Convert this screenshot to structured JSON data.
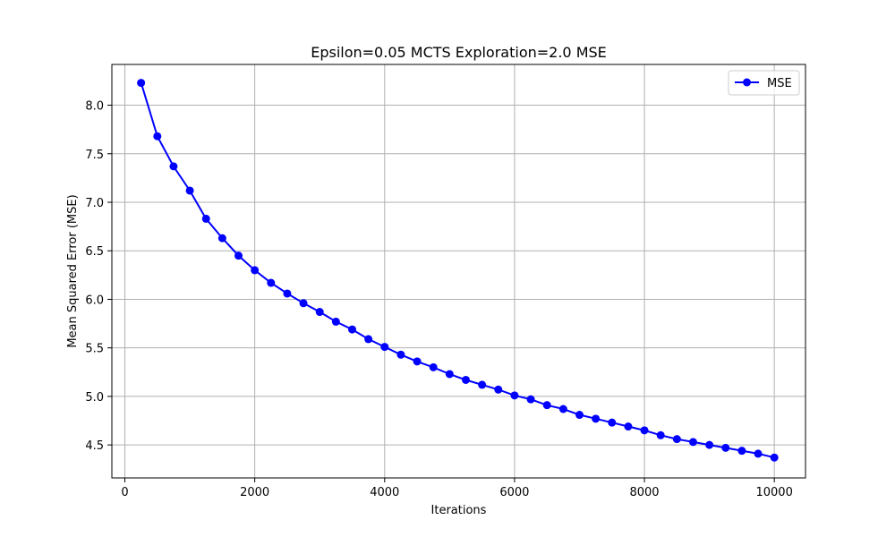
{
  "chart_data": {
    "type": "line",
    "title": "Epsilon=0.05 MCTS Exploration=2.0 MSE",
    "xlabel": "Iterations",
    "ylabel": "Mean Squared Error (MSE)",
    "xlim": [
      -200,
      10480
    ],
    "ylim": [
      4.16,
      8.42
    ],
    "xticks": [
      0,
      2000,
      4000,
      6000,
      8000,
      10000
    ],
    "xtick_labels": [
      "0",
      "2000",
      "4000",
      "6000",
      "8000",
      "10000"
    ],
    "yticks": [
      4.5,
      5.0,
      5.5,
      6.0,
      6.5,
      7.0,
      7.5,
      8.0
    ],
    "ytick_labels": [
      "4.5",
      "5.0",
      "5.5",
      "6.0",
      "6.5",
      "7.0",
      "7.5",
      "8.0"
    ],
    "grid": true,
    "legend_position": "top-right",
    "colors": {
      "series": "#0000ff",
      "grid": "#b0b0b0",
      "axis": "#000000"
    },
    "x": [
      250,
      500,
      750,
      1000,
      1250,
      1500,
      1750,
      2000,
      2250,
      2500,
      2750,
      3000,
      3250,
      3500,
      3750,
      4000,
      4250,
      4500,
      4750,
      5000,
      5250,
      5500,
      5750,
      6000,
      6250,
      6500,
      6750,
      7000,
      7250,
      7500,
      7750,
      8000,
      8250,
      8500,
      8750,
      9000,
      9250,
      9500,
      9750,
      10000
    ],
    "series": [
      {
        "name": "MSE",
        "marker": "circle",
        "values": [
          8.23,
          7.68,
          7.37,
          7.12,
          6.83,
          6.63,
          6.45,
          6.3,
          6.17,
          6.06,
          5.96,
          5.87,
          5.77,
          5.69,
          5.59,
          5.51,
          5.43,
          5.36,
          5.3,
          5.23,
          5.17,
          5.12,
          5.07,
          5.01,
          4.97,
          4.91,
          4.87,
          4.81,
          4.77,
          4.73,
          4.69,
          4.65,
          4.6,
          4.56,
          4.53,
          4.5,
          4.47,
          4.44,
          4.41,
          4.37
        ]
      }
    ]
  }
}
